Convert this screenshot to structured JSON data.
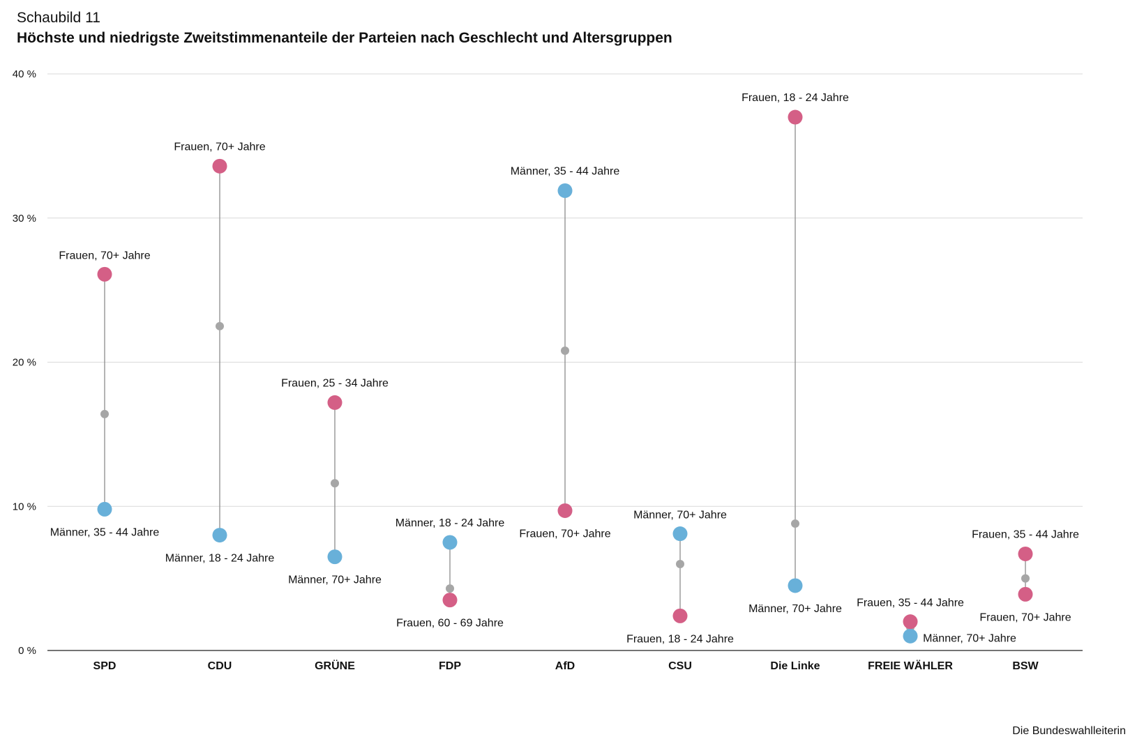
{
  "header": {
    "eyebrow": "Schaubild 11",
    "title": "Höchste und niedrigste Zweitstimmenanteile der Parteien nach Geschlecht und Altersgruppen"
  },
  "source": "Die Bundeswahlleiterin",
  "colors": {
    "frauen": "#d45f86",
    "maenner": "#68b0d9",
    "mean_dot": "#a6a6a6",
    "connector": "#8c8c8c",
    "grid": "#d9d9d9",
    "axis": "#222222"
  },
  "chart_data": {
    "type": "dumbbell",
    "title": "Höchste und niedrigste Zweitstimmenanteile der Parteien nach Geschlecht und Altersgruppen",
    "xlabel": "",
    "ylabel": "",
    "ylim": [
      0,
      40
    ],
    "yticks": [
      0,
      10,
      20,
      30,
      40
    ],
    "ytick_labels": [
      "0 %",
      "10 %",
      "20 %",
      "30 %",
      "40 %"
    ],
    "grid": true,
    "categories": [
      "SPD",
      "CDU",
      "GRÜNE",
      "FDP",
      "AfD",
      "CSU",
      "Die Linke",
      "FREIE WÄHLER",
      "BSW"
    ],
    "parties": [
      {
        "name": "SPD",
        "high": {
          "value": 26.1,
          "gender": "frauen",
          "label": "Frauen, 70+ Jahre"
        },
        "low": {
          "value": 9.8,
          "gender": "maenner",
          "label": "Männer, 35 - 44 Jahre"
        },
        "mid": 16.4
      },
      {
        "name": "CDU",
        "high": {
          "value": 33.6,
          "gender": "frauen",
          "label": "Frauen, 70+ Jahre"
        },
        "low": {
          "value": 8.0,
          "gender": "maenner",
          "label": "Männer, 18 - 24 Jahre"
        },
        "mid": 22.5
      },
      {
        "name": "GRÜNE",
        "high": {
          "value": 17.2,
          "gender": "frauen",
          "label": "Frauen, 25 - 34 Jahre"
        },
        "low": {
          "value": 6.5,
          "gender": "maenner",
          "label": "Männer, 70+ Jahre"
        },
        "mid": 11.6
      },
      {
        "name": "FDP",
        "high": {
          "value": 7.5,
          "gender": "maenner",
          "label": "Männer, 18 - 24 Jahre"
        },
        "low": {
          "value": 3.5,
          "gender": "frauen",
          "label": "Frauen, 60 - 69 Jahre"
        },
        "mid": 4.3
      },
      {
        "name": "AfD",
        "high": {
          "value": 31.9,
          "gender": "maenner",
          "label": "Männer, 35 - 44 Jahre"
        },
        "low": {
          "value": 9.7,
          "gender": "frauen",
          "label": "Frauen, 70+ Jahre"
        },
        "mid": 20.8
      },
      {
        "name": "CSU",
        "high": {
          "value": 8.1,
          "gender": "maenner",
          "label": "Männer, 70+ Jahre"
        },
        "low": {
          "value": 2.4,
          "gender": "frauen",
          "label": "Frauen, 18 - 24 Jahre"
        },
        "mid": 6.0
      },
      {
        "name": "Die Linke",
        "high": {
          "value": 37.0,
          "gender": "frauen",
          "label": "Frauen, 18 - 24 Jahre"
        },
        "low": {
          "value": 4.5,
          "gender": "maenner",
          "label": "Männer, 70+ Jahre"
        },
        "mid": 8.8
      },
      {
        "name": "FREIE WÄHLER",
        "high": {
          "value": 2.0,
          "gender": "frauen",
          "label": "Frauen, 35 - 44 Jahre"
        },
        "low": {
          "value": 1.0,
          "gender": "maenner",
          "label": "Männer, 70+ Jahre"
        },
        "mid": 1.6
      },
      {
        "name": "BSW",
        "high": {
          "value": 6.7,
          "gender": "frauen",
          "label": "Frauen, 35 - 44 Jahre"
        },
        "low": {
          "value": 3.9,
          "gender": "frauen",
          "label": "Frauen, 70+ Jahre"
        },
        "mid": 5.0
      }
    ]
  }
}
